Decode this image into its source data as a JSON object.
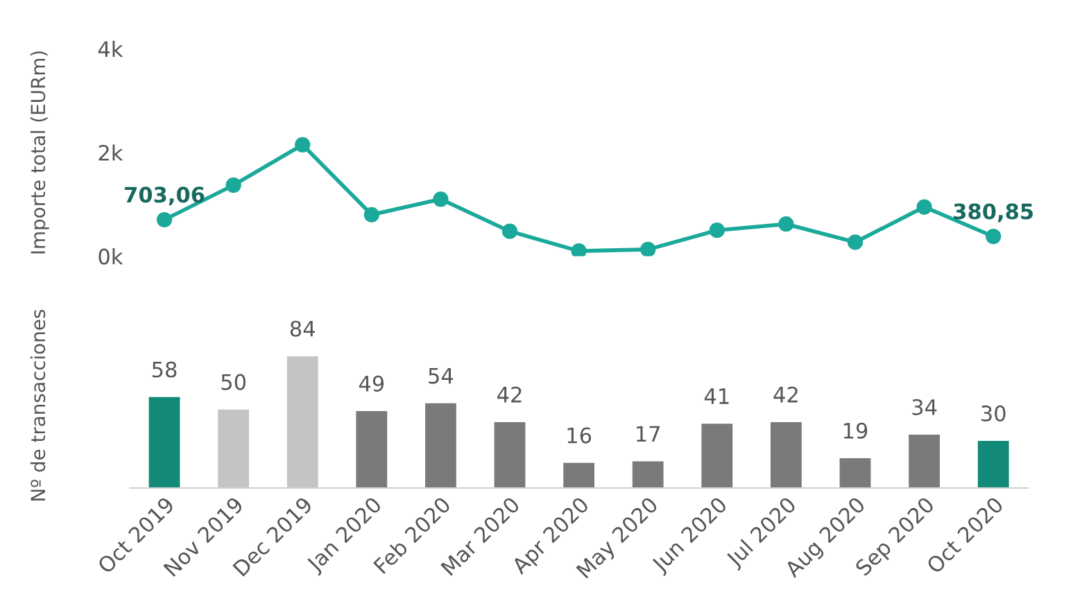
{
  "chart_data": [
    {
      "type": "line",
      "ylabel": "Importe total (EURm)",
      "categories": [
        null,
        null,
        null,
        null,
        null,
        null,
        null,
        null,
        null,
        null,
        null,
        null,
        null
      ],
      "series": [
        {
          "color": "#1aa99a",
          "values": [
            703.06,
            1370,
            2150,
            800,
            1100,
            480,
            100,
            130,
            500,
            620,
            270,
            950,
            380.85
          ],
          "value_labels": [
            "703,06",
            null,
            null,
            null,
            null,
            null,
            null,
            null,
            null,
            null,
            null,
            null,
            "380,85"
          ]
        }
      ],
      "ylim": [
        0,
        4000
      ],
      "yticks": [
        {
          "value": 0,
          "label": "0k"
        },
        {
          "value": 2000,
          "label": "2k"
        },
        {
          "value": 4000,
          "label": "4k"
        }
      ],
      "tick_labels": "y",
      "marker": "circle",
      "line_style": "solid",
      "grid": false,
      "legend": false
    },
    {
      "type": "bar",
      "ylabel": "Nº de transacciones",
      "categories": [
        "Oct 2019",
        "Nov 2019",
        "Dec 2019",
        "Jan 2020",
        "Feb 2020",
        "Mar 2020",
        "Apr 2020",
        "May 2020",
        "Jun 2020",
        "Jul 2020",
        "Aug 2020",
        "Sep 2020",
        "Oct 2020"
      ],
      "values": [
        58,
        50,
        84,
        49,
        54,
        42,
        16,
        17,
        41,
        42,
        19,
        34,
        30
      ],
      "colors": [
        "#138a78",
        "#c4c4c4",
        "#c4c4c4",
        "#7a7a7a",
        "#7a7a7a",
        "#7a7a7a",
        "#7a7a7a",
        "#7a7a7a",
        "#7a7a7a",
        "#7a7a7a",
        "#7a7a7a",
        "#7a7a7a",
        "#138a78"
      ],
      "data_labels": true,
      "tick_labels": "x",
      "grid": false,
      "legend": false
    }
  ]
}
